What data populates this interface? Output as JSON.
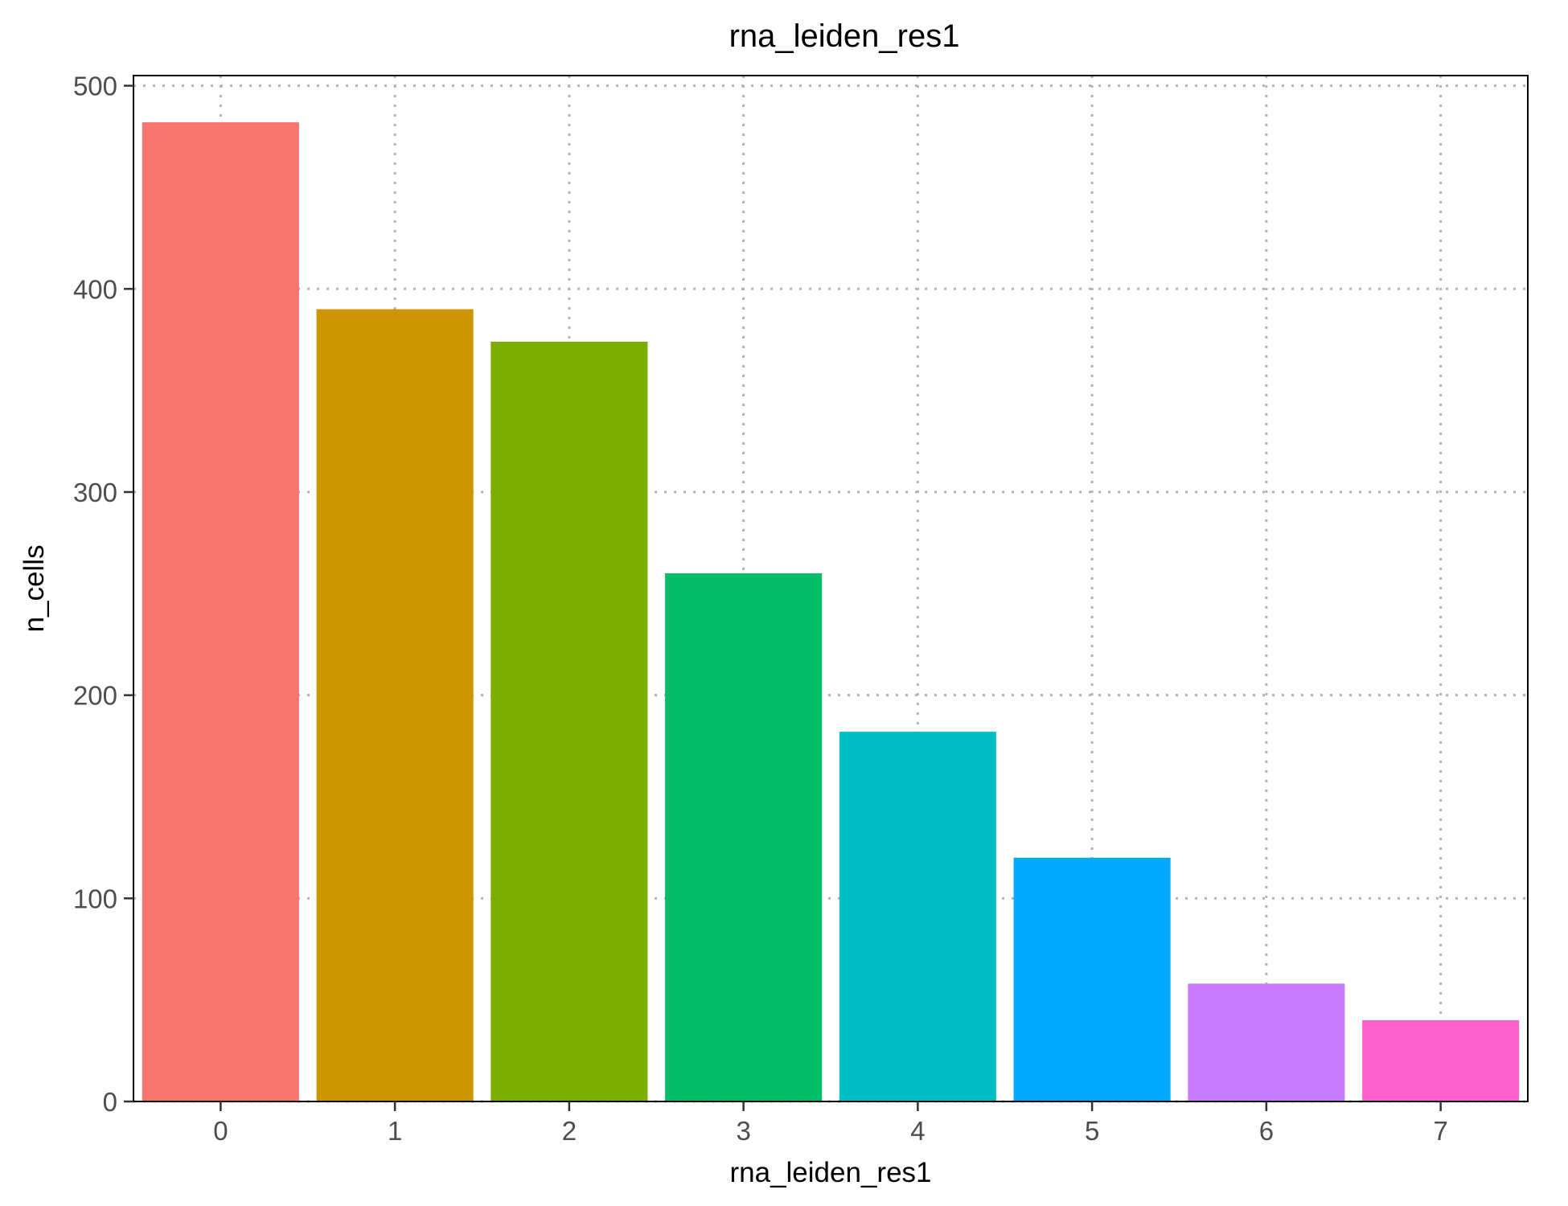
{
  "chart_data": {
    "type": "bar",
    "title": "rna_leiden_res1",
    "xlabel": "rna_leiden_res1",
    "ylabel": "n_cells",
    "categories": [
      "0",
      "1",
      "2",
      "3",
      "4",
      "5",
      "6",
      "7"
    ],
    "values": [
      482,
      390,
      374,
      260,
      182,
      120,
      58,
      40
    ],
    "colors": [
      "#F8766D",
      "#CD9600",
      "#7CAE00",
      "#00BE67",
      "#00BFC4",
      "#00A9FF",
      "#C77CFF",
      "#FF61CC"
    ],
    "ylim": [
      0,
      505
    ],
    "yticks": [
      0,
      100,
      200,
      300,
      400,
      500
    ],
    "grid": true,
    "legend": "none"
  }
}
